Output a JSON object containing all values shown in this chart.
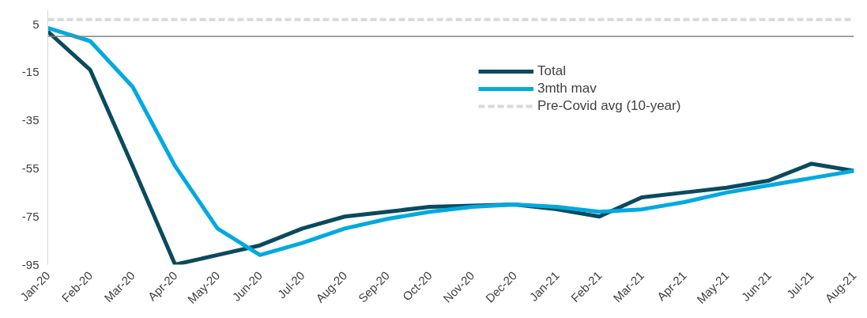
{
  "chart_data": {
    "type": "line",
    "categories": [
      "Jan-20",
      "Feb-20",
      "Mar-20",
      "Apr-20",
      "May-20",
      "Jun-20",
      "Jul-20",
      "Aug-20",
      "Sep-20",
      "Oct-20",
      "Nov-20",
      "Dec-20",
      "Jan-21",
      "Feb-21",
      "Mar-21",
      "Apr-21",
      "May-21",
      "Jun-21",
      "Jul-21",
      "Aug-21"
    ],
    "series": [
      {
        "name": "Total",
        "color": "#0b4a5e",
        "values": [
          2,
          -14,
          -54,
          -95,
          -91,
          -87,
          -80,
          -75,
          -73,
          -71,
          -70.5,
          -70,
          -72,
          -75,
          -67,
          -65,
          -63,
          -60,
          -53,
          -56
        ]
      },
      {
        "name": "3mth mav",
        "color": "#00a9e0",
        "values": [
          3.5,
          -2,
          -21,
          -54,
          -80,
          -91,
          -86,
          -80,
          -76,
          -73,
          -71,
          -70,
          -71,
          -73,
          -72,
          -69,
          -65,
          -62,
          -59,
          -56
        ]
      }
    ],
    "ref_lines": [
      {
        "axis": "y",
        "value": 7,
        "label": "Pre-Covid avg (10-year)",
        "color": "#d9d9d9",
        "line_style": "dashed"
      },
      {
        "axis": "y",
        "value": 0,
        "label": null,
        "color": "#808080",
        "line_style": "solid"
      }
    ],
    "ylim": [
      -95,
      11
    ],
    "yticks": [
      5,
      -15,
      -35,
      -55,
      -75,
      -95
    ],
    "grid": false,
    "legend": "center",
    "marker": "none",
    "line_style": "solid"
  }
}
